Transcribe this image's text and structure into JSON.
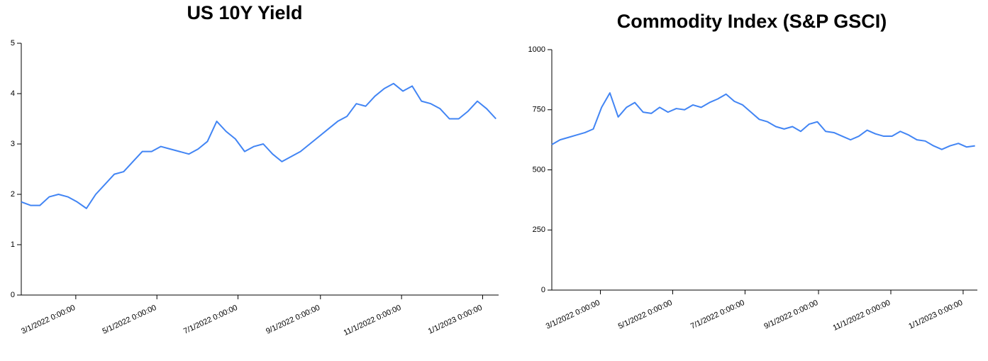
{
  "chart_data": [
    {
      "type": "line",
      "title": "US 10Y Yield",
      "color": "#4285f4",
      "x": [
        "2022-01-19",
        "2022-01-26",
        "2022-02-02",
        "2022-02-09",
        "2022-02-16",
        "2022-02-23",
        "2022-03-02",
        "2022-03-09",
        "2022-03-16",
        "2022-03-23",
        "2022-03-30",
        "2022-04-06",
        "2022-04-13",
        "2022-04-20",
        "2022-04-27",
        "2022-05-04",
        "2022-05-11",
        "2022-05-18",
        "2022-05-25",
        "2022-06-01",
        "2022-06-08",
        "2022-06-15",
        "2022-06-22",
        "2022-06-29",
        "2022-07-06",
        "2022-07-13",
        "2022-07-20",
        "2022-07-27",
        "2022-08-03",
        "2022-08-10",
        "2022-08-17",
        "2022-08-24",
        "2022-08-31",
        "2022-09-07",
        "2022-09-14",
        "2022-09-21",
        "2022-09-28",
        "2022-10-05",
        "2022-10-12",
        "2022-10-19",
        "2022-10-26",
        "2022-11-02",
        "2022-11-09",
        "2022-11-16",
        "2022-11-23",
        "2022-11-30",
        "2022-12-07",
        "2022-12-14",
        "2022-12-21",
        "2022-12-28",
        "2023-01-04",
        "2023-01-11"
      ],
      "values": [
        1.85,
        1.78,
        1.78,
        1.95,
        2.0,
        1.95,
        1.85,
        1.72,
        2.0,
        2.2,
        2.4,
        2.45,
        2.65,
        2.85,
        2.85,
        2.95,
        2.9,
        2.85,
        2.8,
        2.9,
        3.05,
        3.45,
        3.25,
        3.1,
        2.85,
        2.95,
        3.0,
        2.8,
        2.65,
        2.75,
        2.85,
        3.0,
        3.15,
        3.3,
        3.45,
        3.55,
        3.8,
        3.75,
        3.95,
        4.1,
        4.2,
        4.05,
        4.15,
        3.85,
        3.8,
        3.7,
        3.5,
        3.5,
        3.65,
        3.85,
        3.7,
        3.5
      ],
      "xlim": [
        "2022-01-19",
        "2023-01-13"
      ],
      "xticks": [
        {
          "value": "2022-03-01",
          "label": "3/1/2022 0:00:00"
        },
        {
          "value": "2022-05-01",
          "label": "5/1/2022 0:00:00"
        },
        {
          "value": "2022-07-01",
          "label": "7/1/2022 0:00:00"
        },
        {
          "value": "2022-09-01",
          "label": "9/1/2022 0:00:00"
        },
        {
          "value": "2022-11-01",
          "label": "11/1/2022 0:00:00"
        },
        {
          "value": "2023-01-01",
          "label": "1/1/2023 0:00:00"
        }
      ],
      "ylim": [
        0,
        5
      ],
      "yticks": [
        0,
        1,
        2,
        3,
        4,
        5
      ]
    },
    {
      "type": "line",
      "title": "Commodity Index (S&P GSCI)",
      "color": "#4285f4",
      "x": [
        "2022-01-19",
        "2022-01-26",
        "2022-02-02",
        "2022-02-09",
        "2022-02-16",
        "2022-02-23",
        "2022-03-02",
        "2022-03-09",
        "2022-03-16",
        "2022-03-23",
        "2022-03-30",
        "2022-04-06",
        "2022-04-13",
        "2022-04-20",
        "2022-04-27",
        "2022-05-04",
        "2022-05-11",
        "2022-05-18",
        "2022-05-25",
        "2022-06-01",
        "2022-06-08",
        "2022-06-15",
        "2022-06-22",
        "2022-06-29",
        "2022-07-06",
        "2022-07-13",
        "2022-07-20",
        "2022-07-27",
        "2022-08-03",
        "2022-08-10",
        "2022-08-17",
        "2022-08-24",
        "2022-08-31",
        "2022-09-07",
        "2022-09-14",
        "2022-09-21",
        "2022-09-28",
        "2022-10-05",
        "2022-10-12",
        "2022-10-19",
        "2022-10-26",
        "2022-11-02",
        "2022-11-09",
        "2022-11-16",
        "2022-11-23",
        "2022-11-30",
        "2022-12-07",
        "2022-12-14",
        "2022-12-21",
        "2022-12-28",
        "2023-01-04",
        "2023-01-11"
      ],
      "values": [
        605,
        625,
        635,
        645,
        655,
        670,
        760,
        820,
        720,
        760,
        780,
        740,
        735,
        760,
        740,
        755,
        750,
        770,
        760,
        780,
        795,
        815,
        785,
        770,
        740,
        710,
        700,
        680,
        670,
        680,
        660,
        690,
        700,
        660,
        655,
        640,
        625,
        640,
        665,
        650,
        640,
        640,
        660,
        645,
        625,
        620,
        600,
        585,
        600,
        610,
        595,
        600
      ],
      "xlim": [
        "2022-01-19",
        "2023-01-13"
      ],
      "xticks": [
        {
          "value": "2022-03-01",
          "label": "3/1/2022 0:00:00"
        },
        {
          "value": "2022-05-01",
          "label": "5/1/2022 0:00:00"
        },
        {
          "value": "2022-07-01",
          "label": "7/1/2022 0:00:00"
        },
        {
          "value": "2022-09-01",
          "label": "9/1/2022 0:00:00"
        },
        {
          "value": "2022-11-01",
          "label": "11/1/2022 0:00:00"
        },
        {
          "value": "2023-01-01",
          "label": "1/1/2023 0:00:00"
        }
      ],
      "ylim": [
        0,
        1000
      ],
      "yticks": [
        0,
        250,
        500,
        750,
        1000
      ]
    }
  ]
}
